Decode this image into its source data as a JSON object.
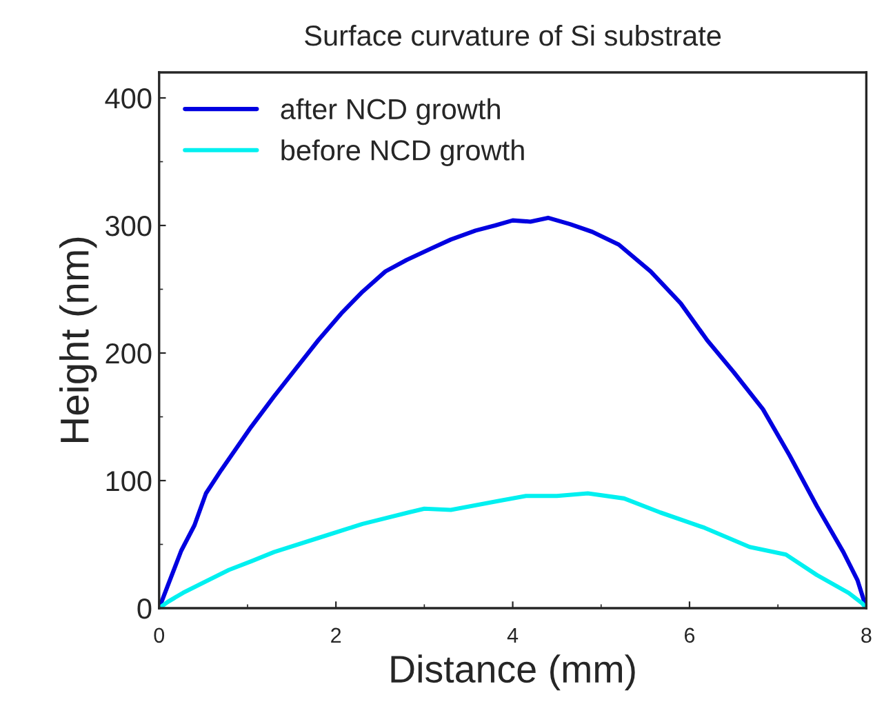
{
  "chart_data": {
    "type": "line",
    "title": "Surface curvature of Si substrate",
    "xlabel": "Distance (mm)",
    "ylabel": "Height (nm)",
    "xlim": [
      0,
      8
    ],
    "xticks": [
      0,
      2,
      4,
      6,
      8
    ],
    "ylim": [
      0,
      420
    ],
    "yticks": [
      0,
      100,
      200,
      300,
      400
    ],
    "grid": false,
    "legend": "top left",
    "series": [
      {
        "name": "after NCD growth",
        "color": "#0000e0",
        "x": [
          0,
          0.1,
          0.25,
          0.4,
          0.53,
          0.7,
          1.04,
          1.3,
          1.55,
          1.8,
          2.06,
          2.3,
          2.56,
          2.8,
          3.08,
          3.3,
          3.58,
          3.8,
          4.0,
          4.2,
          4.4,
          4.65,
          4.9,
          5.2,
          5.56,
          5.9,
          6.2,
          6.5,
          6.83,
          7.13,
          7.44,
          7.74,
          7.9,
          8
        ],
        "values": [
          0,
          18,
          45,
          65,
          90,
          108,
          142,
          166,
          188,
          210,
          231,
          248,
          264,
          273,
          282,
          289,
          296,
          300,
          304,
          303,
          306,
          301,
          295,
          285,
          264,
          239,
          210,
          185,
          156,
          120,
          80,
          44,
          22,
          0
        ]
      },
      {
        "name": "before NCD growth",
        "color": "#00f0f0",
        "x": [
          0,
          0.1,
          0.27,
          0.5,
          0.79,
          1.05,
          1.3,
          1.8,
          2.3,
          2.82,
          3.0,
          3.3,
          3.84,
          4.15,
          4.5,
          4.85,
          5.26,
          5.67,
          6.17,
          6.68,
          7.09,
          7.44,
          7.8,
          7.95,
          8
        ],
        "values": [
          0,
          5,
          12,
          20,
          30,
          37,
          44,
          55,
          66,
          75,
          78,
          77,
          84,
          88,
          88,
          90,
          86,
          75,
          63,
          48,
          42,
          26,
          12,
          4,
          0
        ]
      }
    ]
  }
}
